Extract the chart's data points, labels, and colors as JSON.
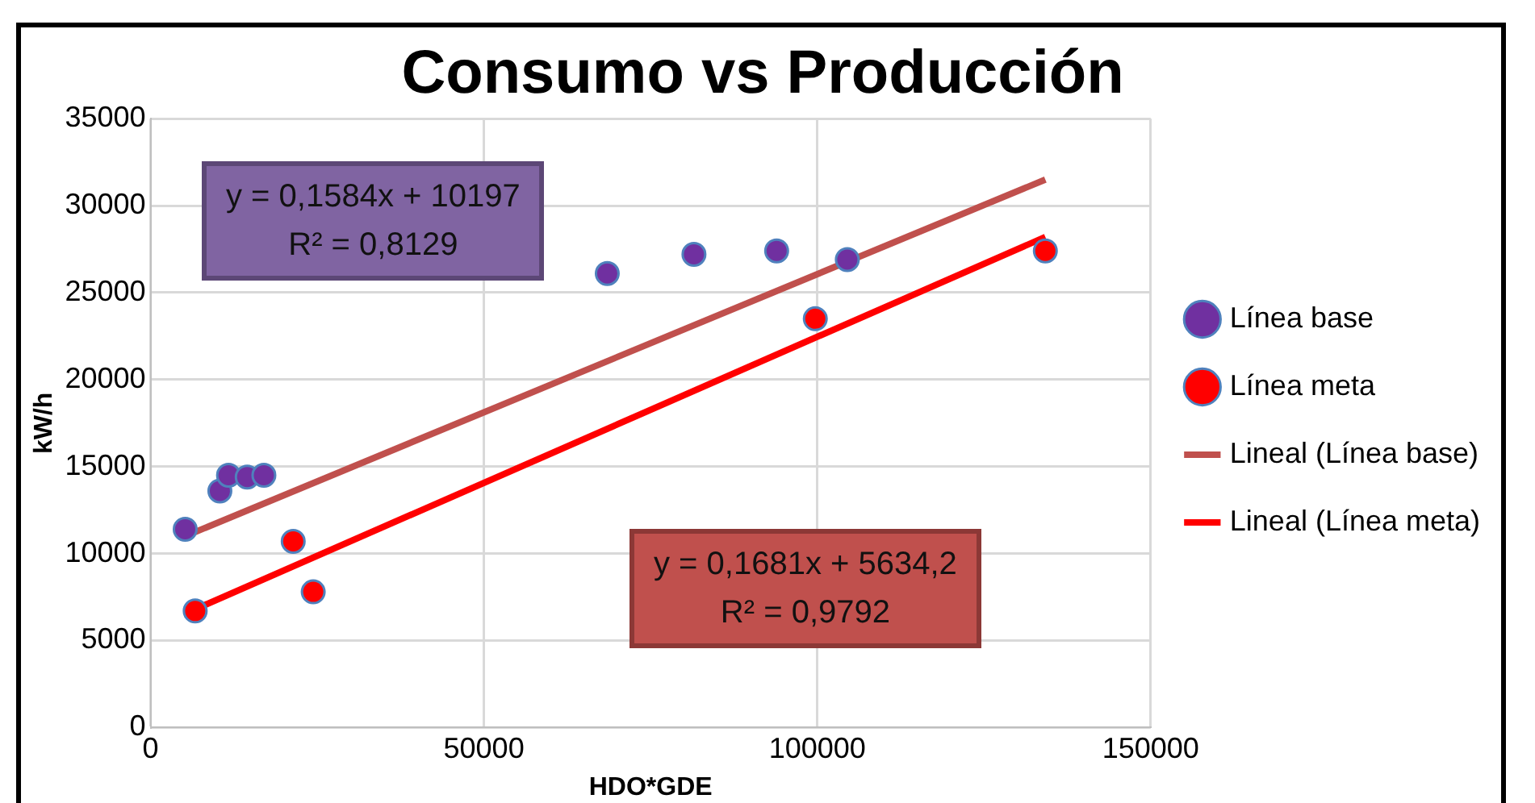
{
  "chart_data": {
    "type": "scatter",
    "title": "Consumo vs Producción",
    "xlabel": "HDO*GDE",
    "ylabel": "kW/h",
    "xlim": [
      0,
      150000
    ],
    "xticks": [
      0,
      50000,
      100000,
      150000
    ],
    "ylim": [
      0,
      35000
    ],
    "yticks": [
      0,
      5000,
      10000,
      15000,
      20000,
      25000,
      30000,
      35000
    ],
    "grid": true,
    "legend": "right",
    "series": [
      {
        "name": "Línea base",
        "color": "#7030a0",
        "marker": "circle",
        "x": [
          5200,
          10400,
          11700,
          14500,
          17000,
          68500,
          81500,
          93900,
          104500
        ],
        "values": [
          11400,
          13600,
          14500,
          14400,
          14500,
          26100,
          27200,
          27400,
          26900
        ]
      },
      {
        "name": "Línea meta",
        "color": "#ff0000",
        "marker": "circle",
        "x": [
          6700,
          21400,
          24400,
          99700,
          134200
        ],
        "values": [
          6700,
          10700,
          7800,
          23500,
          27400
        ]
      },
      {
        "name": "Lineal (Línea base)",
        "type": "line",
        "color": "#c0504d",
        "x": [
          5200,
          134200
        ],
        "values": [
          11000,
          31500
        ]
      },
      {
        "name": "Lineal (Línea meta)",
        "type": "line",
        "color": "#ff0000",
        "x": [
          6700,
          134200
        ],
        "values": [
          6800,
          28200
        ]
      }
    ],
    "annotations": [
      "y = 0,1584x + 10197",
      "R² = 0,8129",
      "y = 0,1681x + 5634,2",
      "R² = 0,9792"
    ]
  }
}
